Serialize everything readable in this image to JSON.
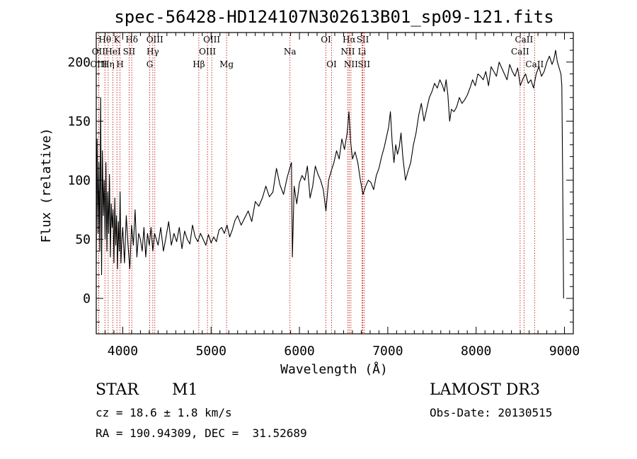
{
  "chart_data": {
    "type": "line",
    "title": "spec-56428-HD124107N302613B01_sp09-121.fits",
    "xlabel": "Wavelength (Å)",
    "ylabel": "Flux (relative)",
    "xlim": [
      3700,
      9100
    ],
    "ylim": [
      -30,
      225
    ],
    "x_ticks": [
      4000,
      5000,
      6000,
      7000,
      8000,
      9000
    ],
    "y_ticks": [
      0,
      50,
      100,
      150,
      200
    ],
    "grid": false,
    "series": [
      {
        "x": [
          3700,
          3710,
          3720,
          3730,
          3740,
          3750,
          3760,
          3770,
          3780,
          3790,
          3800,
          3810,
          3820,
          3830,
          3840,
          3850,
          3860,
          3870,
          3880,
          3890,
          3900,
          3910,
          3920,
          3930,
          3940,
          3950,
          3960,
          3970,
          3980,
          3990,
          4000,
          4020,
          4040,
          4060,
          4080,
          4100,
          4120,
          4140,
          4160,
          4180,
          4200,
          4220,
          4240,
          4260,
          4280,
          4300,
          4320,
          4340,
          4360,
          4380,
          4400,
          4430,
          4460,
          4490,
          4520,
          4550,
          4580,
          4610,
          4640,
          4670,
          4700,
          4730,
          4760,
          4790,
          4820,
          4850,
          4880,
          4910,
          4940,
          4970,
          5000,
          5030,
          5060,
          5090,
          5120,
          5150,
          5180,
          5210,
          5240,
          5270,
          5300,
          5340,
          5380,
          5420,
          5460,
          5500,
          5540,
          5580,
          5620,
          5660,
          5700,
          5740,
          5780,
          5820,
          5860,
          5890,
          5910,
          5920,
          5940,
          5970,
          6000,
          6030,
          6060,
          6090,
          6120,
          6150,
          6180,
          6210,
          6240,
          6270,
          6300,
          6330,
          6360,
          6390,
          6420,
          6450,
          6480,
          6510,
          6540,
          6560,
          6580,
          6600,
          6630,
          6660,
          6690,
          6720,
          6750,
          6780,
          6810,
          6840,
          6870,
          6900,
          6930,
          6960,
          6990,
          7010,
          7030,
          7050,
          7070,
          7090,
          7110,
          7130,
          7150,
          7170,
          7200,
          7230,
          7260,
          7290,
          7320,
          7350,
          7380,
          7410,
          7440,
          7470,
          7500,
          7530,
          7560,
          7590,
          7620,
          7640,
          7660,
          7680,
          7700,
          7720,
          7750,
          7780,
          7810,
          7840,
          7870,
          7900,
          7930,
          7960,
          7990,
          8020,
          8050,
          8080,
          8110,
          8140,
          8170,
          8200,
          8230,
          8260,
          8290,
          8320,
          8350,
          8380,
          8410,
          8440,
          8470,
          8500,
          8530,
          8560,
          8590,
          8620,
          8650,
          8680,
          8710,
          8740,
          8770,
          8800,
          8830,
          8860,
          8880,
          8900,
          8920,
          8940,
          8960,
          8970,
          8980,
          8990
        ],
        "y": [
          30,
          135,
          55,
          115,
          40,
          170,
          20,
          125,
          70,
          100,
          50,
          115,
          40,
          90,
          55,
          105,
          35,
          80,
          60,
          75,
          30,
          85,
          45,
          70,
          25,
          65,
          40,
          90,
          30,
          50,
          60,
          30,
          70,
          45,
          25,
          62,
          45,
          75,
          35,
          55,
          50,
          40,
          60,
          35,
          55,
          45,
          60,
          40,
          55,
          50,
          45,
          60,
          40,
          52,
          65,
          45,
          55,
          48,
          60,
          42,
          57,
          50,
          46,
          62,
          52,
          48,
          55,
          50,
          45,
          54,
          47,
          52,
          48,
          58,
          60,
          55,
          62,
          52,
          58,
          66,
          70,
          62,
          68,
          74,
          65,
          82,
          78,
          85,
          95,
          86,
          90,
          110,
          96,
          88,
          102,
          110,
          115,
          35,
          95,
          80,
          98,
          104,
          100,
          112,
          85,
          95,
          112,
          105,
          100,
          92,
          74,
          100,
          108,
          115,
          125,
          118,
          135,
          126,
          140,
          158,
          132,
          118,
          124,
          115,
          100,
          88,
          95,
          100,
          98,
          92,
          104,
          110,
          120,
          128,
          138,
          145,
          158,
          132,
          115,
          130,
          122,
          128,
          140,
          120,
          100,
          108,
          115,
          130,
          140,
          155,
          165,
          150,
          160,
          170,
          175,
          182,
          178,
          185,
          180,
          175,
          185,
          172,
          150,
          160,
          158,
          162,
          170,
          165,
          168,
          172,
          178,
          185,
          180,
          190,
          188,
          185,
          192,
          180,
          196,
          192,
          188,
          200,
          195,
          190,
          185,
          198,
          192,
          188,
          195,
          180,
          186,
          190,
          182,
          185,
          178,
          190,
          196,
          188,
          192,
          200,
          205,
          198,
          202,
          210,
          200,
          195,
          190,
          180,
          100,
          0
        ],
        "color": "#000000"
      }
    ],
    "line_markers": [
      {
        "label": "Hθ",
        "x": 3798,
        "row": 0
      },
      {
        "label": "OII",
        "x": 3727,
        "row": 1
      },
      {
        "label": "OIII",
        "x": 3727,
        "row": 2
      },
      {
        "label": "K",
        "x": 3934,
        "row": 0
      },
      {
        "label": "HeI",
        "x": 3889,
        "row": 1
      },
      {
        "label": "Hη",
        "x": 3835,
        "row": 2
      },
      {
        "label": "Hδ",
        "x": 4102,
        "row": 0
      },
      {
        "label": "SII",
        "x": 4072,
        "row": 1
      },
      {
        "label": "H",
        "x": 3969,
        "row": 2
      },
      {
        "label": "OIII",
        "x": 4363,
        "row": 0
      },
      {
        "label": "Hγ",
        "x": 4340,
        "row": 1
      },
      {
        "label": "G",
        "x": 4305,
        "row": 2
      },
      {
        "label": "OIII",
        "x": 5007,
        "row": 0
      },
      {
        "label": "OIII",
        "x": 4959,
        "row": 1
      },
      {
        "label": "Hβ",
        "x": 4861,
        "row": 2
      },
      {
        "label": "Mg",
        "x": 5175,
        "row": 2
      },
      {
        "label": "Na",
        "x": 5893,
        "row": 1
      },
      {
        "label": "OI",
        "x": 6300,
        "row": 0
      },
      {
        "label": "OI",
        "x": 6364,
        "row": 2
      },
      {
        "label": "Hα",
        "x": 6563,
        "row": 0
      },
      {
        "label": "SII",
        "x": 6717,
        "row": 0
      },
      {
        "label": "NII",
        "x": 6548,
        "row": 1
      },
      {
        "label": "Li",
        "x": 6708,
        "row": 1
      },
      {
        "label": "NII",
        "x": 6583,
        "row": 2
      },
      {
        "label": "SII",
        "x": 6731,
        "row": 2
      },
      {
        "label": "CaII",
        "x": 8542,
        "row": 0
      },
      {
        "label": "CaII",
        "x": 8498,
        "row": 1
      },
      {
        "label": "CaII",
        "x": 8662,
        "row": 2
      }
    ]
  },
  "info": {
    "class_label": "STAR",
    "subclass_label": "M1",
    "survey_label": "LAMOST DR3",
    "redshift_text": "cz = 18.6 ± 1.8 km/s",
    "obs_date_text": "Obs-Date: 20130515",
    "coords_text": "RA = 190.94309, DEC =  31.52689"
  }
}
